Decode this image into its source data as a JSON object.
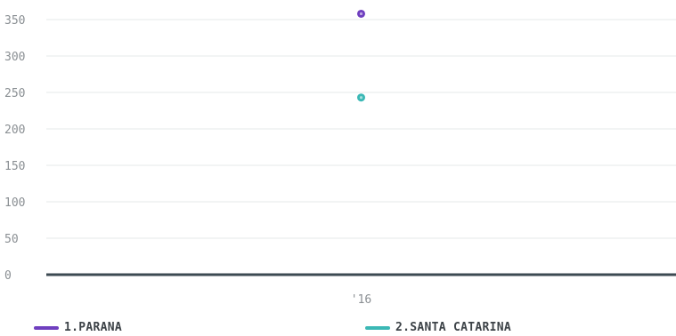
{
  "chart_data": {
    "type": "scatter",
    "categories": [
      "'16"
    ],
    "series": [
      {
        "name": "1.PARANA",
        "values": [
          358
        ],
        "color": "#6f3fbf"
      },
      {
        "name": "2.SANTA CATARINA",
        "values": [
          243
        ],
        "color": "#3bb8b5"
      }
    ],
    "yticks": [
      0,
      50,
      100,
      150,
      200,
      250,
      300,
      350
    ],
    "ylim": [
      0,
      370
    ],
    "grid": true,
    "legend_position": "bottom",
    "title": "",
    "xlabel": "",
    "ylabel": ""
  },
  "colors": {
    "gridline": "#e6e8ea",
    "baseline": "#3c4a52",
    "tick_text": "#8a8f93"
  }
}
